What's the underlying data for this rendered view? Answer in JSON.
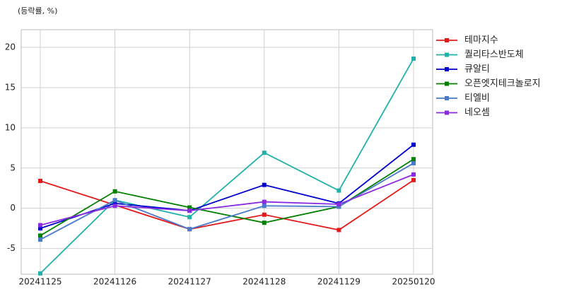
{
  "chart_data": {
    "type": "line",
    "y_label": "(등락률, %)",
    "categories": [
      "20241125",
      "20241126",
      "20241127",
      "20241128",
      "20241129",
      "20250120"
    ],
    "series": [
      {
        "name": "테마지수",
        "color": "#e31a1c",
        "values": [
          3.4,
          0.4,
          -2.6,
          -0.8,
          -2.7,
          3.5
        ]
      },
      {
        "name": "퀄리타스반도체",
        "color": "#20b2aa",
        "values": [
          -8.1,
          1.0,
          -1.1,
          6.9,
          2.2,
          18.6
        ]
      },
      {
        "name": "큐알티",
        "color": "#0000cd",
        "values": [
          -2.5,
          0.6,
          -0.3,
          2.9,
          0.6,
          7.9
        ]
      },
      {
        "name": "오픈엣지테크놀로지",
        "color": "#008000",
        "values": [
          -3.4,
          2.1,
          0.1,
          -1.8,
          0.2,
          6.1
        ]
      },
      {
        "name": "티엘비",
        "color": "#4a7acb",
        "values": [
          -3.9,
          1.0,
          -2.6,
          0.3,
          0.2,
          5.6
        ]
      },
      {
        "name": "네오셈",
        "color": "#8a2be2",
        "values": [
          -2.1,
          0.3,
          -0.3,
          0.8,
          0.5,
          4.2
        ]
      }
    ],
    "ylim": [
      -8.2,
      22.2
    ],
    "yticks": [
      -5,
      0,
      5,
      10,
      15,
      20
    ],
    "grid": true,
    "legend": "right"
  }
}
